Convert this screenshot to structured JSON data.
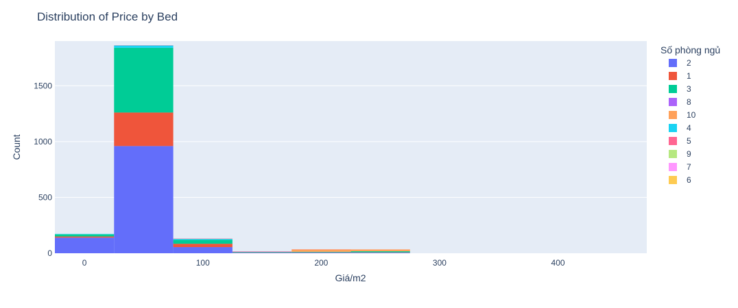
{
  "chart_data": {
    "type": "bar",
    "title": "Distribution of Price by Bed",
    "xlabel": "Giá/m2",
    "ylabel": "Count",
    "xlim": [
      -25,
      475
    ],
    "ylim": [
      0,
      1900
    ],
    "x_ticks": [
      0,
      100,
      200,
      300,
      400
    ],
    "y_ticks": [
      0,
      500,
      1000,
      1500
    ],
    "bins": [
      [
        -25,
        25
      ],
      [
        25,
        75
      ],
      [
        75,
        125
      ],
      [
        125,
        175
      ],
      [
        175,
        225
      ],
      [
        225,
        275
      ]
    ],
    "legend_title": "Số phòng ngủ",
    "legend_position": "right",
    "series": [
      {
        "name": "2",
        "color": "#636efa",
        "values": [
          140,
          960,
          55,
          5,
          5,
          5
        ]
      },
      {
        "name": "1",
        "color": "#EF553B",
        "values": [
          10,
          300,
          30,
          3,
          3,
          3
        ]
      },
      {
        "name": "3",
        "color": "#00cc96",
        "values": [
          20,
          580,
          35,
          5,
          5,
          10
        ]
      },
      {
        "name": "8",
        "color": "#ab63fa",
        "values": [
          0,
          0,
          0,
          0,
          0,
          0
        ]
      },
      {
        "name": "10",
        "color": "#FFA15A",
        "values": [
          0,
          0,
          0,
          0,
          20,
          15
        ]
      },
      {
        "name": "4",
        "color": "#19d3f3",
        "values": [
          3,
          20,
          8,
          0,
          0,
          0
        ]
      },
      {
        "name": "5",
        "color": "#FF6692",
        "values": [
          0,
          2,
          3,
          3,
          2,
          1
        ]
      },
      {
        "name": "9",
        "color": "#B6E880",
        "values": [
          0,
          0,
          0,
          0,
          0,
          0
        ]
      },
      {
        "name": "7",
        "color": "#FF97FF",
        "values": [
          0,
          0,
          0,
          2,
          0,
          0
        ]
      },
      {
        "name": "6",
        "color": "#FECB52",
        "values": [
          0,
          0,
          0,
          0,
          1,
          1
        ]
      }
    ]
  }
}
